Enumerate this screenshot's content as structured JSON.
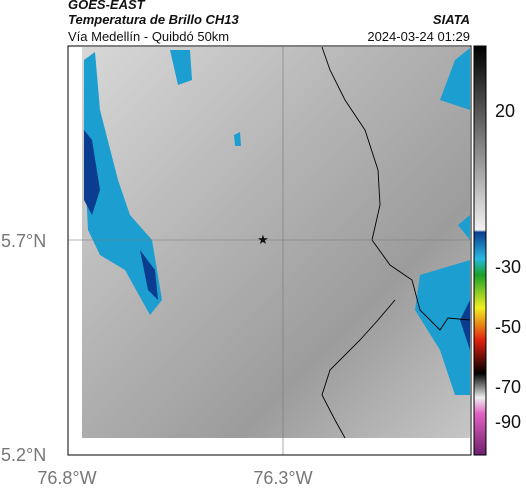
{
  "header": {
    "source": "GOES-EAST",
    "title": "Temperatura de Brillo CH13",
    "subtitle": "Vía Medellín - Quibdó 50km",
    "brand": "SIATA",
    "timestamp": "2024-03-24 01:29"
  },
  "map": {
    "lat_labels": [
      "5.7°N",
      "5.2°N"
    ],
    "lon_labels": [
      "76.8°W",
      "76.3°W"
    ]
  },
  "colorbar": {
    "tick_labels": [
      "20",
      "-30",
      "-50",
      "-70",
      "-90"
    ]
  }
}
